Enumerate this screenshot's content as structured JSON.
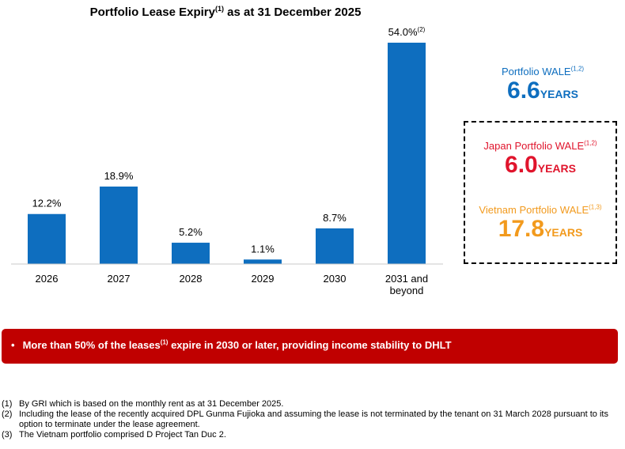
{
  "title": {
    "main": "Portfolio Lease Expiry",
    "sup": "(1)",
    "suffix": " as at 31 December 2025"
  },
  "chart_data": {
    "type": "bar",
    "categories": [
      "2026",
      "2027",
      "2028",
      "2029",
      "2030",
      "2031 and beyond"
    ],
    "category_lines": [
      [
        "2026"
      ],
      [
        "2027"
      ],
      [
        "2028"
      ],
      [
        "2029"
      ],
      [
        "2030"
      ],
      [
        "2031 and",
        "beyond"
      ]
    ],
    "values": [
      12.2,
      18.9,
      5.2,
      1.1,
      8.7,
      54.0
    ],
    "value_labels": [
      "12.2%",
      "18.9%",
      "5.2%",
      "1.1%",
      "8.7%",
      "54.0%"
    ],
    "value_label_sups": [
      "",
      "",
      "",
      "",
      "",
      "(2)"
    ],
    "ylim": [
      0,
      54.0
    ],
    "grid": false,
    "bar_color": "#0e6ebf"
  },
  "wale": {
    "portfolio": {
      "label": "Portfolio WALE",
      "sup": "(1,2)",
      "value": "6.6",
      "unit": "YEARS",
      "color": "#0e6ebf"
    },
    "japan": {
      "label": "Japan Portfolio WALE",
      "sup": "(1,2)",
      "value": "6.0",
      "unit": "YEARS",
      "color": "#e0142c"
    },
    "vietnam": {
      "label": "Vietnam Portfolio WALE",
      "sup": "(1,3)",
      "value": "17.8",
      "unit": "YEARS",
      "color": "#f29a1d"
    }
  },
  "banner": {
    "bullet": "•",
    "text_before": "More than 50% of the leases",
    "sup": "(1)",
    "text_after": " expire in 2030 or later, providing income stability to DHLT",
    "color": "#c00000"
  },
  "footnotes": [
    {
      "mark": "(1)",
      "text": "By GRI which is based on the monthly rent as at 31 December 2025."
    },
    {
      "mark": "(2)",
      "text": "Including the lease of the recently acquired DPL Gunma Fujioka and assuming the lease is not terminated by the tenant on 31 March 2028 pursuant to its option to terminate under the lease agreement."
    },
    {
      "mark": "(3)",
      "text": "The Vietnam portfolio comprised D Project Tan Duc 2."
    }
  ]
}
